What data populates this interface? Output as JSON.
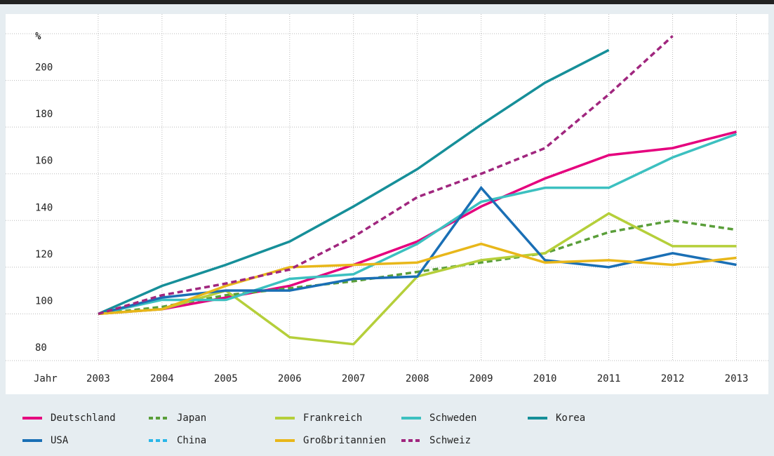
{
  "chart_data": {
    "type": "line",
    "x_label": "Jahr",
    "y_label": "%",
    "x": [
      2003,
      2004,
      2005,
      2006,
      2007,
      2008,
      2009,
      2010,
      2011,
      2012,
      2013
    ],
    "xlim": [
      2001.55,
      2013.5
    ],
    "ylim": [
      80,
      220
    ],
    "yticks": [
      80,
      100,
      120,
      140,
      160,
      180,
      200
    ],
    "grid": true,
    "series": [
      {
        "name": "Deutschland",
        "color": "#e5007e",
        "dashed": false,
        "values": [
          100,
          102,
          107,
          112,
          121,
          131,
          146,
          158,
          168,
          171,
          178
        ]
      },
      {
        "name": "Japan",
        "color": "#5a9e3a",
        "dashed": true,
        "values": [
          100,
          103,
          108,
          111,
          114,
          118,
          122,
          126,
          135,
          140,
          136
        ]
      },
      {
        "name": "Frankreich",
        "color": "#b5cf3a",
        "dashed": false,
        "values": [
          100,
          102,
          110,
          90,
          87,
          116,
          123,
          126,
          143,
          129,
          129
        ]
      },
      {
        "name": "Schweden",
        "color": "#3cc0c0",
        "dashed": false,
        "values": [
          100,
          106,
          106,
          115,
          117,
          130,
          148,
          154,
          154,
          167,
          177
        ]
      },
      {
        "name": "Korea",
        "color": "#168f99",
        "dashed": false,
        "values": [
          100,
          112,
          121,
          131,
          146,
          162,
          181,
          199,
          213,
          null,
          null
        ]
      },
      {
        "name": "USA",
        "color": "#1a6fb5",
        "dashed": false,
        "values": [
          100,
          107,
          110,
          110,
          115,
          116,
          154,
          123,
          120,
          126,
          121
        ]
      },
      {
        "name": "China",
        "color": "#29b6e8",
        "dashed": true,
        "values": [
          null,
          null,
          null,
          null,
          null,
          null,
          null,
          null,
          null,
          null,
          null
        ]
      },
      {
        "name": "Großbritannien",
        "color": "#e8b71a",
        "dashed": false,
        "values": [
          100,
          102,
          112,
          120,
          121,
          122,
          130,
          122,
          123,
          121,
          124
        ]
      },
      {
        "name": "Schweiz",
        "color": "#a0267e",
        "dashed": true,
        "values": [
          100,
          108,
          113,
          119,
          133,
          150,
          160,
          171,
          194,
          219,
          null
        ]
      }
    ]
  }
}
